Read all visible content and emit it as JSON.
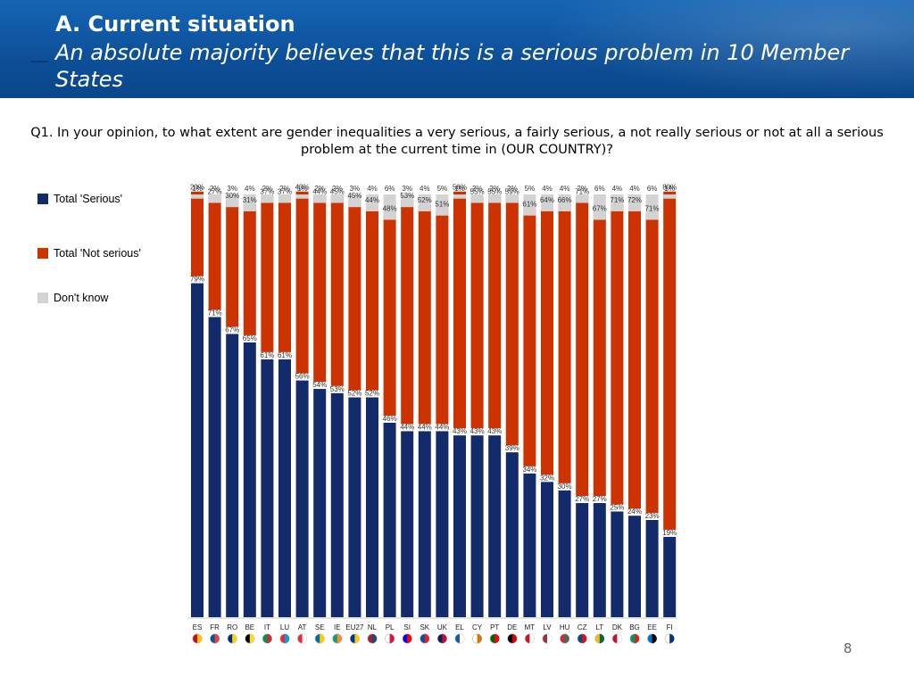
{
  "header": {
    "title": "A. Current situation",
    "subtitle": "An absolute majority believes that this is a serious problem in 10 Member States"
  },
  "question": "Q1. In your opinion, to what extent are gender inequalities a very serious, a fairly serious, a not really serious or not at all a serious problem at the current time in (OUR COUNTRY)?",
  "page_number": "8",
  "chart_data": {
    "type": "bar",
    "stacked": true,
    "orientation": "vertical",
    "categories": [
      "ES",
      "FR",
      "RO",
      "BE",
      "IT",
      "LU",
      "AT",
      "SE",
      "IE",
      "EU27",
      "NL",
      "PL",
      "SI",
      "SK",
      "UK",
      "EL",
      "CY",
      "PT",
      "DE",
      "MT",
      "LV",
      "HU",
      "CZ",
      "LT",
      "DK",
      "BG",
      "EE",
      "FI"
    ],
    "series": [
      {
        "name": "Total 'Serious'",
        "color": "#132a6b",
        "values": [
          79,
          71,
          67,
          65,
          61,
          61,
          56,
          54,
          53,
          52,
          52,
          46,
          44,
          44,
          44,
          43,
          43,
          43,
          39,
          34,
          32,
          30,
          27,
          27,
          25,
          24,
          23,
          19
        ]
      },
      {
        "name": "Total 'Not serious'",
        "color": "#cc3300",
        "values": [
          20,
          27,
          30,
          31,
          37,
          37,
          43,
          44,
          45,
          45,
          44,
          48,
          53,
          52,
          51,
          56,
          55,
          55,
          59,
          61,
          64,
          66,
          71,
          67,
          71,
          72,
          71,
          80
        ]
      },
      {
        "name": "Don't know",
        "color": "#d3d3d3",
        "values": [
          1,
          2,
          3,
          4,
          2,
          2,
          1,
          2,
          2,
          3,
          4,
          6,
          3,
          4,
          5,
          1,
          2,
          2,
          2,
          5,
          4,
          4,
          2,
          6,
          4,
          4,
          6,
          1
        ]
      }
    ],
    "value_suffix": "%",
    "ylim": [
      0,
      100
    ],
    "legend_position": "left",
    "grid": false,
    "category_flags": true
  }
}
